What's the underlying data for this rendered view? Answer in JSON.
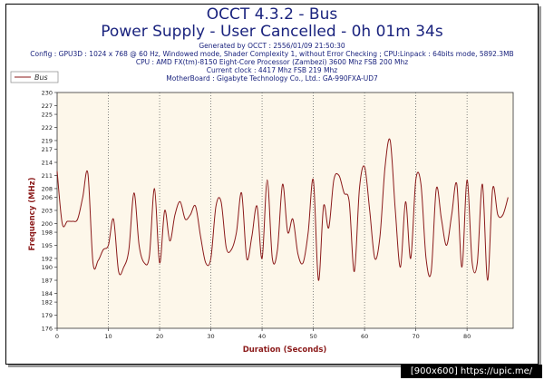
{
  "header": {
    "title_line1": "OCCT 4.3.2 - Bus",
    "title_line2": "Power Supply - User Cancelled - 0h 01m 34s",
    "generated": "Generated by OCCT : 2556/01/09 21:50:30",
    "config": "Config : GPU3D : 1024 x 768 @ 60 Hz, Windowed mode, Shader Complexity 1, without Error Checking ; CPU:Linpack : 64bits mode, 5892.3MB",
    "cpu": "CPU : AMD FX(tm)-8150 Eight-Core Processor (Zambezi) 3600 Mhz FSB 200 Mhz",
    "clock": "Current clock : 4417 Mhz FSB 219 Mhz",
    "motherboard": "MotherBoard : Gigabyte Technology Co., Ltd.: GA-990FXA-UD7"
  },
  "watermark": "[900x600] https://upic.me/",
  "colors": {
    "title": "#1a237e",
    "axis_label": "#8b1a1a",
    "series": "#8b1a1a",
    "plot_bg": "#fdf7ea",
    "grid": "#555555"
  },
  "chart_data": {
    "type": "line",
    "xlabel": "Duration (Seconds)",
    "ylabel": "Frequency (MHz)",
    "xlim": [
      0,
      89
    ],
    "ylim": [
      176,
      230
    ],
    "xticks": [
      0,
      10,
      20,
      30,
      40,
      50,
      60,
      70,
      80
    ],
    "yticks": [
      176,
      179,
      182,
      184,
      187,
      190,
      192,
      195,
      198,
      200,
      203,
      206,
      208,
      211,
      214,
      217,
      219,
      222,
      225,
      227,
      230
    ],
    "grid": "vertical dotted",
    "legend": "top-left",
    "series": [
      {
        "name": "Bus",
        "color": "#8b1a1a",
        "x": [
          0,
          1,
          2,
          3,
          4,
          5,
          6,
          7,
          8,
          9,
          10,
          11,
          12,
          13,
          14,
          15,
          16,
          17,
          18,
          19,
          20,
          21,
          22,
          23,
          24,
          25,
          26,
          27,
          28,
          29,
          30,
          31,
          32,
          33,
          34,
          35,
          36,
          37,
          38,
          39,
          40,
          41,
          42,
          43,
          44,
          45,
          46,
          47,
          48,
          49,
          50,
          51,
          52,
          53,
          54,
          55,
          56,
          57,
          58,
          59,
          60,
          61,
          62,
          63,
          64,
          65,
          66,
          67,
          68,
          69,
          70,
          71,
          72,
          73,
          74,
          75,
          76,
          77,
          78,
          79,
          80,
          81,
          82,
          83,
          84,
          85,
          86,
          87,
          88
        ],
        "values": [
          212,
          200,
          200.5,
          200.5,
          201,
          206,
          211.5,
          191,
          191.5,
          194,
          195,
          201,
          189,
          190,
          194,
          207,
          195,
          191,
          192.5,
          208,
          191,
          203,
          196,
          202,
          205,
          201,
          202,
          204,
          197,
          191,
          192,
          204,
          205,
          194.5,
          194,
          198,
          207,
          192,
          197,
          204,
          192,
          210,
          192,
          194,
          209,
          198,
          201,
          193,
          191,
          198,
          210,
          187,
          204,
          199,
          210,
          211,
          207,
          205,
          189,
          208,
          213,
          203,
          192,
          197,
          213,
          219,
          203,
          190,
          205,
          192,
          210,
          209,
          192,
          189,
          208,
          201,
          195,
          202,
          209,
          190,
          210,
          191,
          191,
          209,
          187,
          208,
          202,
          202,
          206
        ]
      }
    ]
  }
}
